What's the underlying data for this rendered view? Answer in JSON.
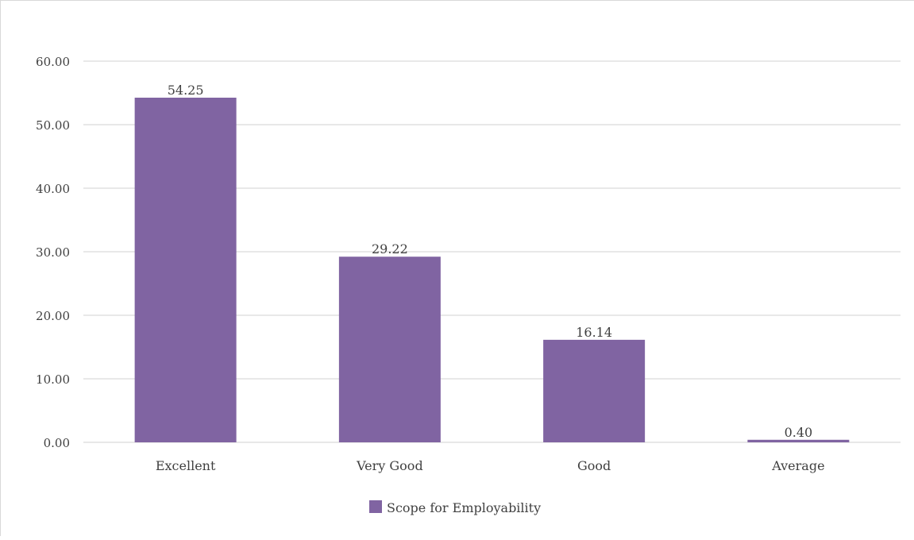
{
  "chart_data": {
    "type": "bar",
    "categories": [
      "Excellent",
      "Very Good",
      "Good",
      "Average"
    ],
    "series": [
      {
        "name": "Scope for Employability",
        "values": [
          54.25,
          29.22,
          16.14,
          0.4
        ],
        "labels": [
          "54.25",
          "29.22",
          "16.14",
          "0.40"
        ],
        "color": "#8064a2"
      }
    ],
    "ylim": [
      0,
      60
    ],
    "yticks": [
      "0.00",
      "10.00",
      "20.00",
      "30.00",
      "40.00",
      "50.00",
      "60.00"
    ],
    "title": "",
    "xlabel": "",
    "ylabel": "",
    "grid": true,
    "legend_position": "bottom"
  }
}
